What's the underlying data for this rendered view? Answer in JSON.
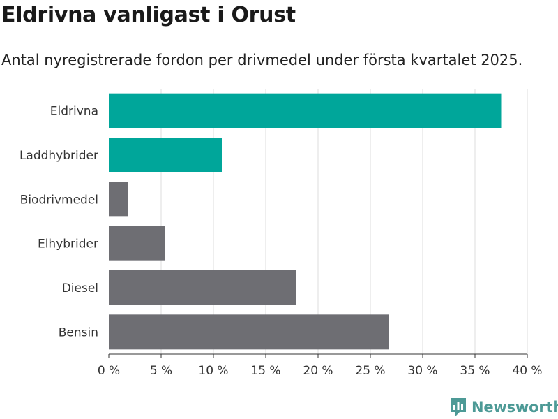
{
  "header": {
    "title": "Eldrivna vanligast i Orust",
    "subtitle": "Antal nyregistrerade fordon per drivmedel under första kvartalet 2025."
  },
  "brand": {
    "name": "Newsworthy",
    "icon": "newsworthy-logo-icon",
    "color": "#4d9a96"
  },
  "chart_data": {
    "type": "bar",
    "orientation": "horizontal",
    "categories": [
      "Eldrivna",
      "Laddhybrider",
      "Biodrivmedel",
      "Elhybrider",
      "Diesel",
      "Bensin"
    ],
    "values": [
      37.5,
      10.8,
      1.8,
      5.4,
      17.9,
      26.8
    ],
    "colors": [
      "#00a69a",
      "#00a69a",
      "#6e6e73",
      "#6e6e73",
      "#6e6e73",
      "#6e6e73"
    ],
    "xlim": [
      0,
      40
    ],
    "xticks": [
      0,
      5,
      10,
      15,
      20,
      25,
      30,
      35,
      40
    ],
    "xtick_labels": [
      "0 %",
      "5 %",
      "10 %",
      "15 %",
      "20 %",
      "25 %",
      "30 %",
      "35 %",
      "40 %"
    ],
    "grid": true
  }
}
